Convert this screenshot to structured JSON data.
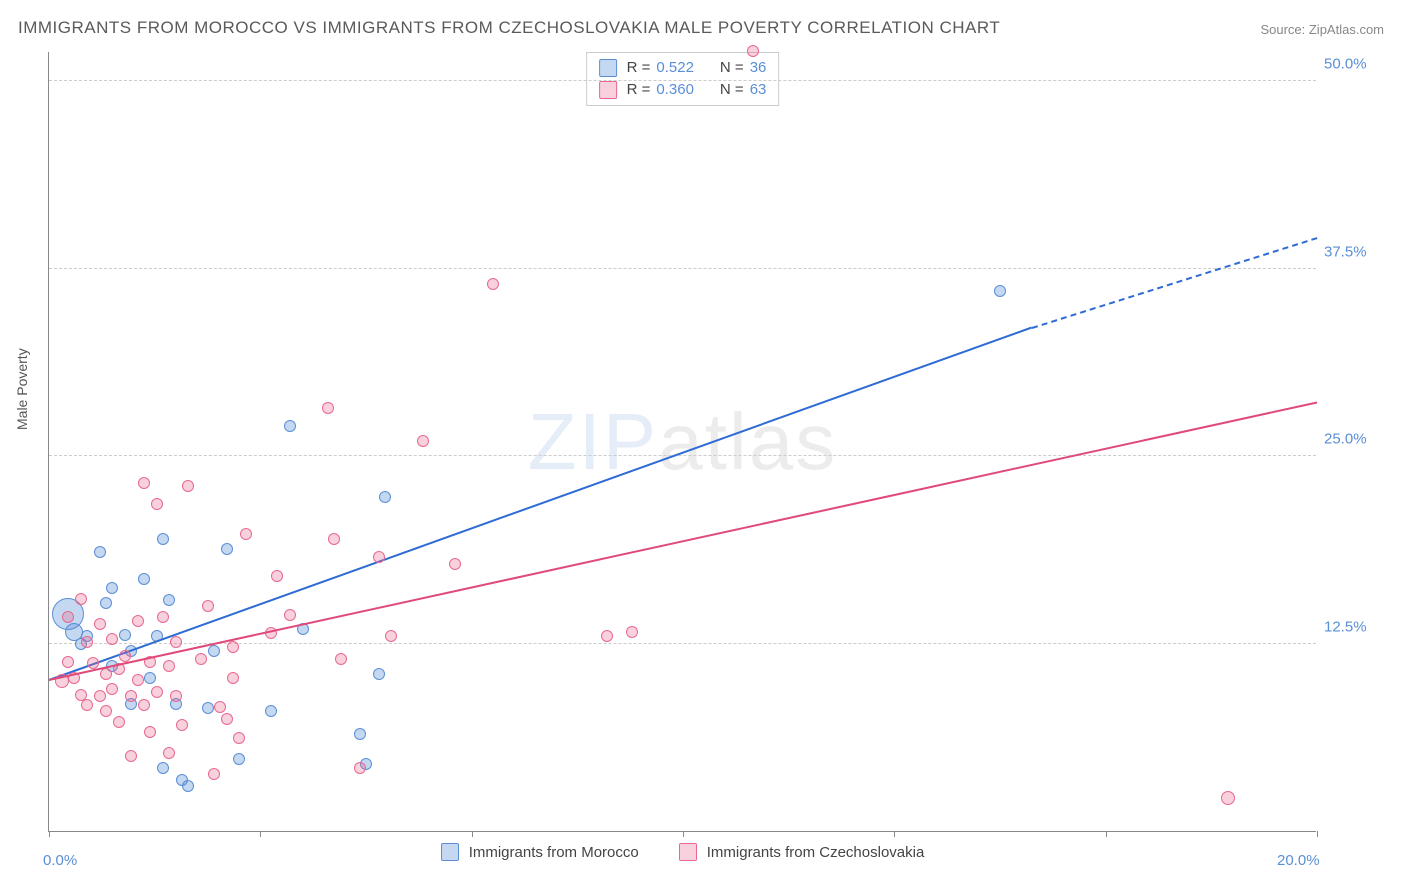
{
  "title": "IMMIGRANTS FROM MOROCCO VS IMMIGRANTS FROM CZECHOSLOVAKIA MALE POVERTY CORRELATION CHART",
  "source": "Source: ZipAtlas.com",
  "ylabel": "Male Poverty",
  "watermark_bold": "ZIP",
  "watermark_thin": "atlas",
  "chart": {
    "type": "scatter",
    "background_color": "#ffffff",
    "grid_color": "#cccccc",
    "axis_color": "#888888",
    "tick_label_color": "#5a8fd6",
    "text_color": "#555555",
    "xlim": [
      0,
      20
    ],
    "ylim": [
      0,
      52
    ],
    "yticks": [
      12.5,
      25.0,
      37.5,
      50.0
    ],
    "ytick_labels": [
      "12.5%",
      "25.0%",
      "37.5%",
      "50.0%"
    ],
    "xticks": [
      0,
      3.33,
      6.67,
      10,
      13.33,
      16.67,
      20
    ],
    "xtick_labels_shown": {
      "0": "0.0%",
      "20": "20.0%"
    },
    "series": [
      {
        "name": "Immigrants from Morocco",
        "color_fill": "rgba(90,143,214,0.35)",
        "color_stroke": "#5a8fd6",
        "trend_color": "#2e6bd4",
        "r": 0.522,
        "n": 36,
        "trend": {
          "x1": 0,
          "y1": 10.0,
          "x2": 15.5,
          "y2": 33.5,
          "dash_x2": 20,
          "dash_y2": 39.5
        },
        "points": [
          {
            "x": 0.3,
            "y": 14.5,
            "s": 32
          },
          {
            "x": 0.4,
            "y": 13.3,
            "s": 18
          },
          {
            "x": 0.5,
            "y": 12.5,
            "s": 12
          },
          {
            "x": 0.6,
            "y": 13.0,
            "s": 12
          },
          {
            "x": 0.8,
            "y": 18.6,
            "s": 12
          },
          {
            "x": 0.9,
            "y": 15.2,
            "s": 12
          },
          {
            "x": 1.0,
            "y": 11.0,
            "s": 12
          },
          {
            "x": 1.0,
            "y": 16.2,
            "s": 12
          },
          {
            "x": 1.2,
            "y": 13.1,
            "s": 12
          },
          {
            "x": 1.3,
            "y": 8.5,
            "s": 12
          },
          {
            "x": 1.3,
            "y": 12.0,
            "s": 12
          },
          {
            "x": 1.5,
            "y": 16.8,
            "s": 12
          },
          {
            "x": 1.6,
            "y": 10.2,
            "s": 12
          },
          {
            "x": 1.7,
            "y": 13.0,
            "s": 12
          },
          {
            "x": 1.8,
            "y": 19.5,
            "s": 12
          },
          {
            "x": 1.8,
            "y": 4.2,
            "s": 12
          },
          {
            "x": 1.9,
            "y": 15.4,
            "s": 12
          },
          {
            "x": 2.0,
            "y": 8.5,
            "s": 12
          },
          {
            "x": 2.1,
            "y": 3.4,
            "s": 12
          },
          {
            "x": 2.2,
            "y": 3.0,
            "s": 12
          },
          {
            "x": 2.5,
            "y": 8.2,
            "s": 12
          },
          {
            "x": 2.6,
            "y": 12.0,
            "s": 12
          },
          {
            "x": 2.8,
            "y": 18.8,
            "s": 12
          },
          {
            "x": 3.0,
            "y": 4.8,
            "s": 12
          },
          {
            "x": 3.5,
            "y": 8.0,
            "s": 12
          },
          {
            "x": 3.8,
            "y": 27.0,
            "s": 12
          },
          {
            "x": 4.0,
            "y": 13.5,
            "s": 12
          },
          {
            "x": 4.9,
            "y": 6.5,
            "s": 12
          },
          {
            "x": 5.0,
            "y": 4.5,
            "s": 12
          },
          {
            "x": 5.2,
            "y": 10.5,
            "s": 12
          },
          {
            "x": 5.3,
            "y": 22.3,
            "s": 12
          },
          {
            "x": 15.0,
            "y": 36.0,
            "s": 12
          }
        ]
      },
      {
        "name": "Immigrants from Czechoslovakia",
        "color_fill": "rgba(232,104,144,0.30)",
        "color_stroke": "#e86890",
        "trend_color": "#e04a7a",
        "r": 0.36,
        "n": 63,
        "trend": {
          "x1": 0,
          "y1": 10.0,
          "x2": 20,
          "y2": 28.5
        },
        "points": [
          {
            "x": 0.2,
            "y": 10.0,
            "s": 14
          },
          {
            "x": 0.3,
            "y": 14.3,
            "s": 12
          },
          {
            "x": 0.3,
            "y": 11.3,
            "s": 12
          },
          {
            "x": 0.4,
            "y": 10.2,
            "s": 12
          },
          {
            "x": 0.5,
            "y": 9.1,
            "s": 12
          },
          {
            "x": 0.5,
            "y": 15.5,
            "s": 12
          },
          {
            "x": 0.6,
            "y": 8.4,
            "s": 12
          },
          {
            "x": 0.6,
            "y": 12.6,
            "s": 12
          },
          {
            "x": 0.7,
            "y": 11.2,
            "s": 12
          },
          {
            "x": 0.8,
            "y": 9.0,
            "s": 12
          },
          {
            "x": 0.8,
            "y": 13.8,
            "s": 12
          },
          {
            "x": 0.9,
            "y": 10.5,
            "s": 12
          },
          {
            "x": 0.9,
            "y": 8.0,
            "s": 12
          },
          {
            "x": 1.0,
            "y": 12.8,
            "s": 12
          },
          {
            "x": 1.0,
            "y": 9.5,
            "s": 12
          },
          {
            "x": 1.1,
            "y": 10.8,
            "s": 12
          },
          {
            "x": 1.1,
            "y": 7.3,
            "s": 12
          },
          {
            "x": 1.2,
            "y": 11.7,
            "s": 12
          },
          {
            "x": 1.3,
            "y": 9.0,
            "s": 12
          },
          {
            "x": 1.3,
            "y": 5.0,
            "s": 12
          },
          {
            "x": 1.4,
            "y": 14.0,
            "s": 12
          },
          {
            "x": 1.4,
            "y": 10.1,
            "s": 12
          },
          {
            "x": 1.5,
            "y": 8.4,
            "s": 12
          },
          {
            "x": 1.5,
            "y": 23.2,
            "s": 12
          },
          {
            "x": 1.6,
            "y": 11.3,
            "s": 12
          },
          {
            "x": 1.6,
            "y": 6.6,
            "s": 12
          },
          {
            "x": 1.7,
            "y": 9.3,
            "s": 12
          },
          {
            "x": 1.7,
            "y": 21.8,
            "s": 12
          },
          {
            "x": 1.8,
            "y": 14.3,
            "s": 12
          },
          {
            "x": 1.9,
            "y": 11.0,
            "s": 12
          },
          {
            "x": 1.9,
            "y": 5.2,
            "s": 12
          },
          {
            "x": 2.0,
            "y": 12.6,
            "s": 12
          },
          {
            "x": 2.0,
            "y": 9.0,
            "s": 12
          },
          {
            "x": 2.1,
            "y": 7.1,
            "s": 12
          },
          {
            "x": 2.2,
            "y": 23.0,
            "s": 12
          },
          {
            "x": 2.4,
            "y": 11.5,
            "s": 12
          },
          {
            "x": 2.5,
            "y": 15.0,
            "s": 12
          },
          {
            "x": 2.6,
            "y": 3.8,
            "s": 12
          },
          {
            "x": 2.7,
            "y": 8.3,
            "s": 12
          },
          {
            "x": 2.8,
            "y": 7.5,
            "s": 12
          },
          {
            "x": 2.9,
            "y": 12.3,
            "s": 12
          },
          {
            "x": 2.9,
            "y": 10.2,
            "s": 12
          },
          {
            "x": 3.0,
            "y": 6.2,
            "s": 12
          },
          {
            "x": 3.1,
            "y": 19.8,
            "s": 12
          },
          {
            "x": 3.5,
            "y": 13.2,
            "s": 12
          },
          {
            "x": 3.6,
            "y": 17.0,
            "s": 12
          },
          {
            "x": 3.8,
            "y": 14.4,
            "s": 12
          },
          {
            "x": 4.4,
            "y": 28.2,
            "s": 12
          },
          {
            "x": 4.5,
            "y": 19.5,
            "s": 12
          },
          {
            "x": 4.6,
            "y": 11.5,
            "s": 12
          },
          {
            "x": 4.9,
            "y": 4.2,
            "s": 12
          },
          {
            "x": 5.2,
            "y": 18.3,
            "s": 12
          },
          {
            "x": 5.4,
            "y": 13.0,
            "s": 12
          },
          {
            "x": 5.9,
            "y": 26.0,
            "s": 12
          },
          {
            "x": 6.4,
            "y": 17.8,
            "s": 12
          },
          {
            "x": 7.0,
            "y": 36.5,
            "s": 12
          },
          {
            "x": 8.8,
            "y": 13.0,
            "s": 12
          },
          {
            "x": 9.2,
            "y": 13.3,
            "s": 12
          },
          {
            "x": 11.1,
            "y": 52.0,
            "s": 12
          },
          {
            "x": 18.6,
            "y": 2.2,
            "s": 14
          }
        ]
      }
    ]
  },
  "legend_top": [
    {
      "sw_fill": "rgba(90,143,214,0.35)",
      "sw_stroke": "#5a8fd6",
      "r_label": "R =",
      "r_val": "0.522",
      "n_label": "N =",
      "n_val": "36"
    },
    {
      "sw_fill": "rgba(232,104,144,0.30)",
      "sw_stroke": "#e86890",
      "r_label": "R =",
      "r_val": "0.360",
      "n_label": "N =",
      "n_val": "63"
    }
  ],
  "legend_bottom": [
    {
      "sw_fill": "rgba(90,143,214,0.35)",
      "sw_stroke": "#5a8fd6",
      "label": "Immigrants from Morocco"
    },
    {
      "sw_fill": "rgba(232,104,144,0.30)",
      "sw_stroke": "#e86890",
      "label": "Immigrants from Czechoslovakia"
    }
  ]
}
